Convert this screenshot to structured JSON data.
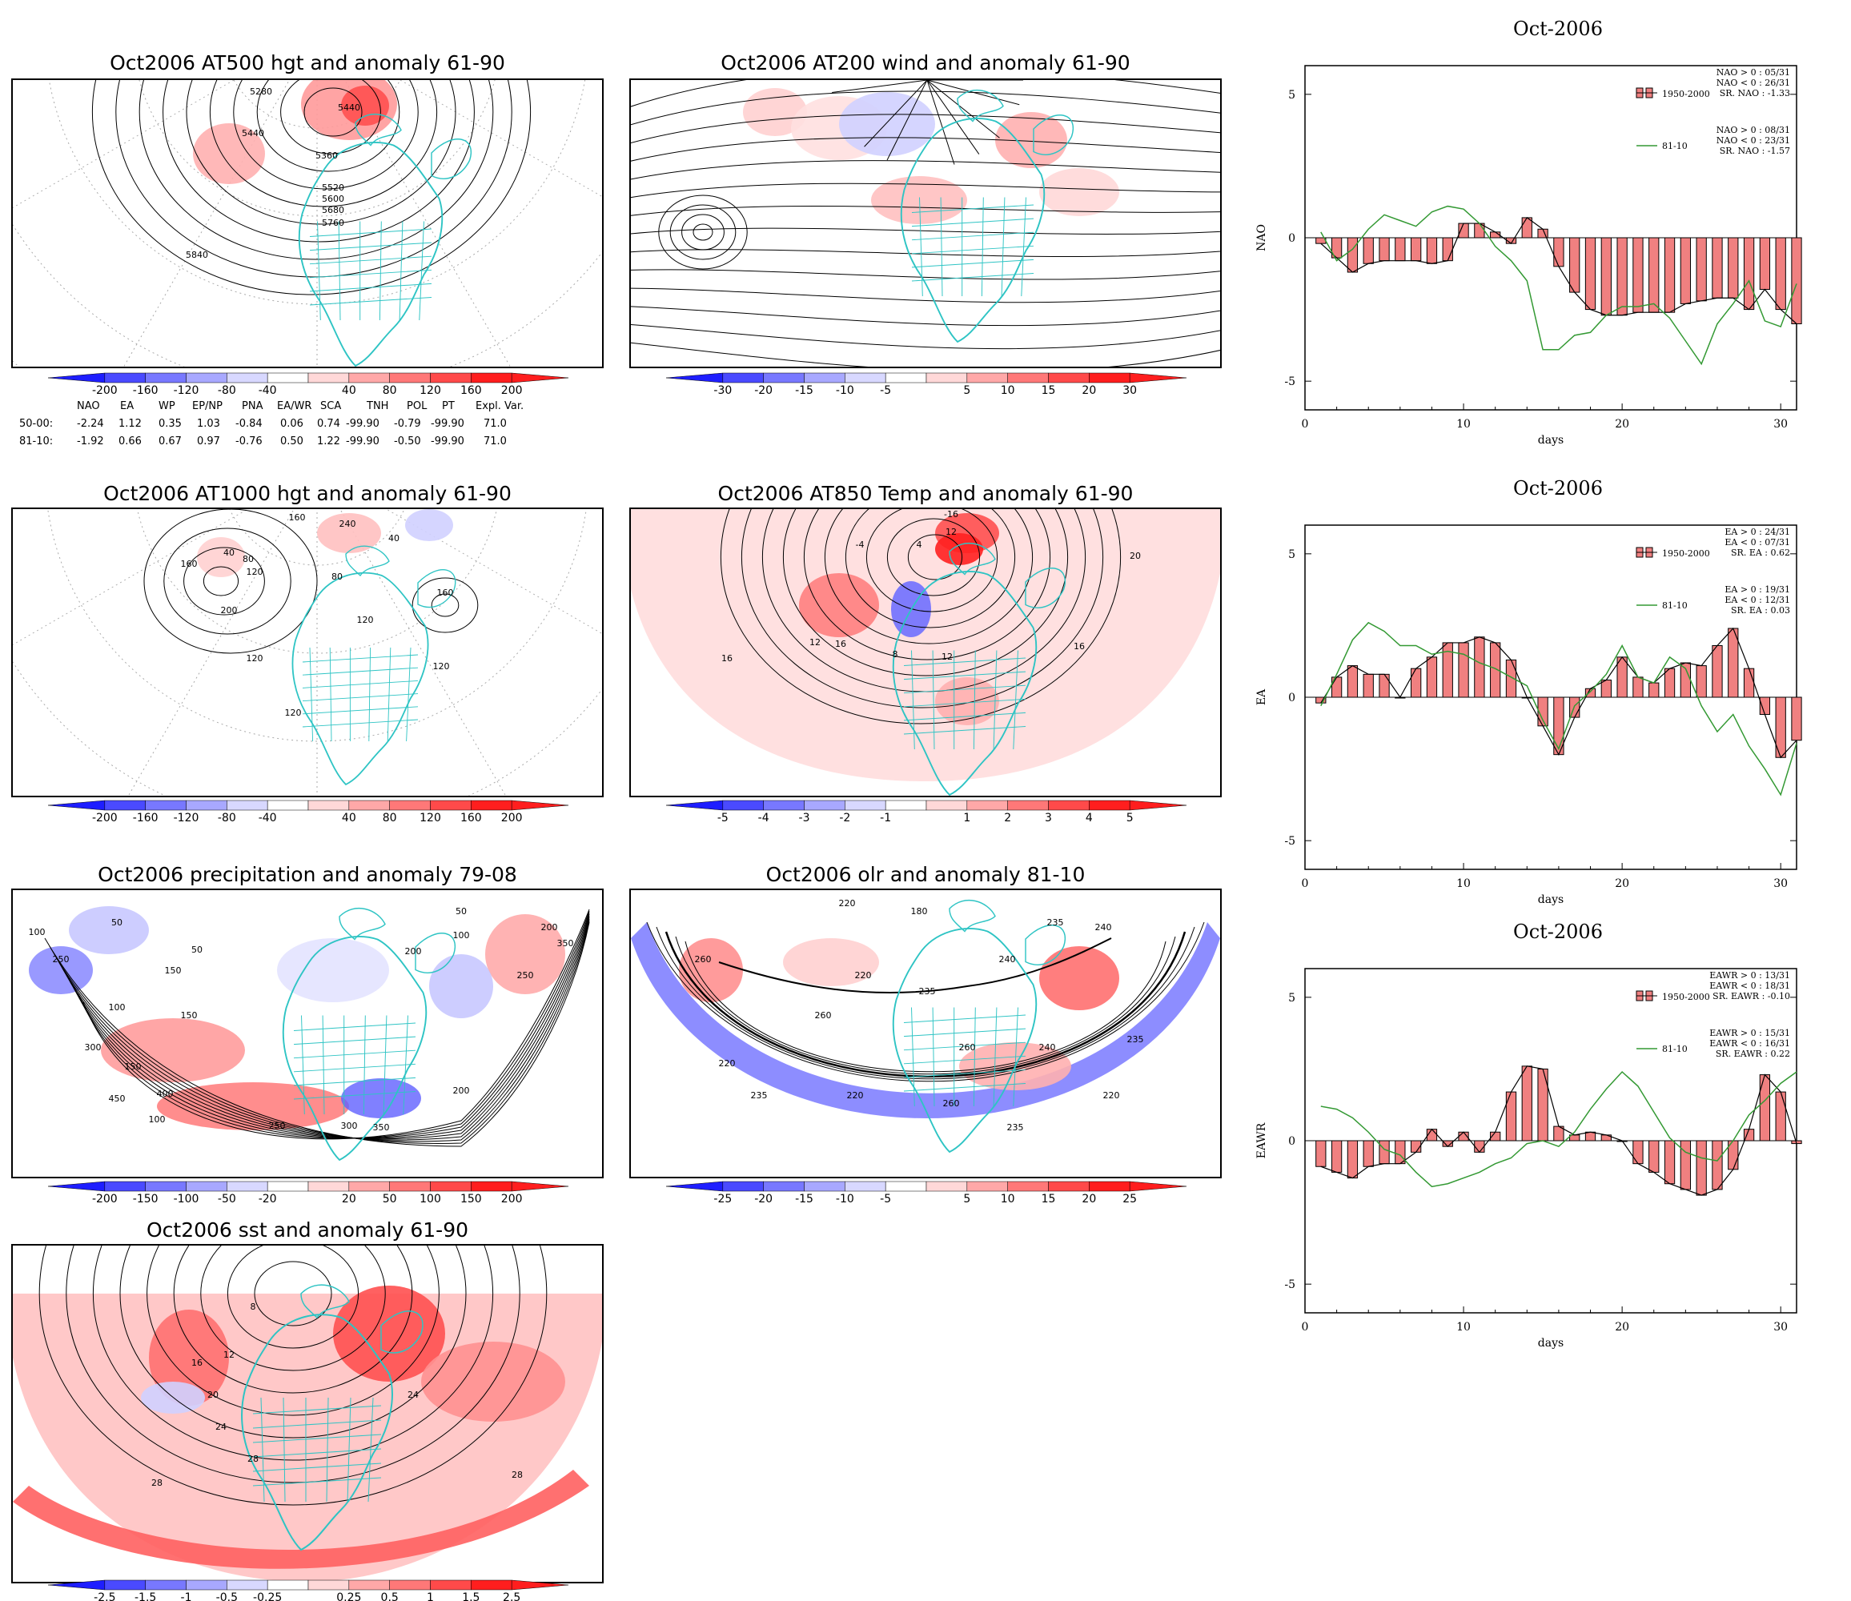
{
  "maps": [
    {
      "id": "z500",
      "title": "Oct2006 AT500 hgt and anomaly 61-90",
      "contour_labels": [
        "5280",
        "5440",
        "5440",
        "5360",
        "5520",
        "5600",
        "5680",
        "5760",
        "5840"
      ],
      "colorbar": {
        "neg": [
          "-200",
          "-160",
          "-120",
          "-80",
          "-40"
        ],
        "pos": [
          "40",
          "80",
          "120",
          "160",
          "200"
        ]
      }
    },
    {
      "id": "w200",
      "title": "Oct2006 AT200 wind and anomaly 61-90",
      "contour_labels": [],
      "colorbar": {
        "neg": [
          "-30",
          "-20",
          "-15",
          "-10",
          "-5"
        ],
        "pos": [
          "5",
          "10",
          "15",
          "20",
          "30"
        ]
      }
    },
    {
      "id": "z1000",
      "title": "Oct2006 AT1000 hgt and anomaly 61-90",
      "contour_labels": [
        "160",
        "240",
        "40",
        "40",
        "80",
        "160",
        "120",
        "80",
        "160",
        "200",
        "120",
        "120",
        "120",
        "120"
      ],
      "colorbar": {
        "neg": [
          "-200",
          "-160",
          "-120",
          "-80",
          "-40"
        ],
        "pos": [
          "40",
          "80",
          "120",
          "160",
          "200"
        ]
      }
    },
    {
      "id": "t850",
      "title": "Oct2006 AT850 Temp and anomaly 61-90",
      "contour_labels": [
        "-16",
        "12",
        "-4",
        "4",
        "20",
        "16",
        "16",
        "12",
        "8",
        "12",
        "16"
      ],
      "colorbar": {
        "neg": [
          "-5",
          "-4",
          "-3",
          "-2",
          "-1"
        ],
        "pos": [
          "1",
          "2",
          "3",
          "4",
          "5"
        ]
      }
    },
    {
      "id": "prec",
      "title": "Oct2006 precipitation and anomaly 79-08",
      "contour_labels": [
        "100",
        "250",
        "50",
        "150",
        "100",
        "50",
        "300",
        "150",
        "200",
        "100",
        "250",
        "400",
        "450",
        "200",
        "300",
        "350",
        "50",
        "100",
        "250",
        "150",
        "350",
        "200"
      ],
      "colorbar": {
        "neg": [
          "-200",
          "-150",
          "-100",
          "-50",
          "-20"
        ],
        "pos": [
          "20",
          "50",
          "100",
          "150",
          "200"
        ]
      }
    },
    {
      "id": "olr",
      "title": "Oct2006 olr and anomaly 81-10",
      "contour_labels": [
        "220",
        "180",
        "235",
        "240",
        "260",
        "220",
        "235",
        "240",
        "260",
        "220",
        "235",
        "260",
        "240",
        "235",
        "220",
        "260",
        "235",
        "220"
      ],
      "colorbar": {
        "neg": [
          "-25",
          "-20",
          "-15",
          "-10",
          "-5"
        ],
        "pos": [
          "5",
          "10",
          "15",
          "20",
          "25"
        ]
      }
    },
    {
      "id": "sst",
      "title": "Oct2006 sst and anomaly 61-90",
      "contour_labels": [
        "8",
        "12",
        "16",
        "20",
        "24",
        "24",
        "28",
        "28",
        "28"
      ],
      "colorbar": {
        "neg": [
          "-2.5",
          "-1.5",
          "-1",
          "-0.5",
          "-0.25"
        ],
        "pos": [
          "0.25",
          "0.5",
          "1",
          "1.5",
          "2.5"
        ]
      }
    }
  ],
  "index_table": {
    "headers": [
      "NAO",
      "EA",
      "WP",
      "EP/NP",
      "PNA",
      "EA/WR",
      "SCA",
      "TNH",
      "POL",
      "PT",
      "Expl. Var."
    ],
    "rows": [
      {
        "label": "50-00:",
        "values": [
          "-2.24",
          "1.12",
          "0.35",
          "1.03",
          "-0.84",
          "0.06",
          "0.74",
          "-99.90",
          "-0.79",
          "-99.90",
          "71.0"
        ]
      },
      {
        "label": "81-10:",
        "values": [
          "-1.92",
          "0.66",
          "0.67",
          "0.97",
          "-0.76",
          "0.50",
          "1.22",
          "-99.90",
          "-0.50",
          "-99.90",
          "71.0"
        ]
      }
    ]
  },
  "colors": {
    "coast": "#2ec4c4",
    "bar_fill": "#f08080",
    "line_green": "#339933",
    "neg_strong": "#2b2bff",
    "pos_strong": "#ff2020"
  },
  "chart_data": [
    {
      "type": "bar",
      "title": "Oct-2006",
      "ylabel": "NAO",
      "xlabel": "days",
      "xlim": [
        0,
        31
      ],
      "ylim": [
        -6,
        6
      ],
      "xticks": [
        "0",
        "10",
        "20",
        "30"
      ],
      "yticks": [
        "5",
        "0",
        "-5"
      ],
      "series": [
        {
          "name": "1950-2000",
          "x": [
            1,
            2,
            3,
            4,
            5,
            6,
            7,
            8,
            9,
            10,
            11,
            12,
            13,
            14,
            15,
            16,
            17,
            18,
            19,
            20,
            21,
            22,
            23,
            24,
            25,
            26,
            27,
            28,
            29,
            30,
            31
          ],
          "values": [
            -0.2,
            -0.7,
            -1.2,
            -0.9,
            -0.8,
            -0.8,
            -0.8,
            -0.9,
            -0.8,
            0.5,
            0.5,
            0.2,
            -0.2,
            0.7,
            0.3,
            -1.0,
            -1.9,
            -2.5,
            -2.7,
            -2.7,
            -2.6,
            -2.6,
            -2.6,
            -2.3,
            -2.2,
            -2.1,
            -2.1,
            -2.5,
            -1.8,
            -2.5,
            -3.0
          ]
        },
        {
          "name": "81-10",
          "x": [
            1,
            2,
            3,
            4,
            5,
            6,
            7,
            8,
            9,
            10,
            11,
            12,
            13,
            14,
            15,
            16,
            17,
            18,
            19,
            20,
            21,
            22,
            23,
            24,
            25,
            26,
            27,
            28,
            29,
            30,
            31
          ],
          "values": [
            0.2,
            -0.8,
            -0.4,
            0.3,
            0.8,
            0.6,
            0.4,
            0.9,
            1.1,
            1.0,
            0.5,
            -0.3,
            -0.8,
            -1.5,
            -3.9,
            -3.9,
            -3.4,
            -3.3,
            -2.7,
            -2.4,
            -2.4,
            -2.3,
            -2.8,
            -3.6,
            -4.4,
            -3.0,
            -2.3,
            -1.5,
            -2.9,
            -3.1,
            -1.6
          ]
        }
      ],
      "legend": {
        "bar_label": "1950-2000",
        "line_label": "81-10",
        "bar_stats": [
          "NAO > 0 : 05/31",
          "NAO < 0 : 26/31",
          "SR. NAO : -1.33"
        ],
        "line_stats": [
          "NAO > 0 : 08/31",
          "NAO < 0 : 23/31",
          "SR. NAO : -1.57"
        ]
      }
    },
    {
      "type": "bar",
      "title": "Oct-2006",
      "ylabel": "EA",
      "xlabel": "days",
      "xlim": [
        0,
        31
      ],
      "ylim": [
        -6,
        6
      ],
      "xticks": [
        "0",
        "10",
        "20",
        "30"
      ],
      "yticks": [
        "5",
        "0",
        "-5"
      ],
      "series": [
        {
          "name": "1950-2000",
          "x": [
            1,
            2,
            3,
            4,
            5,
            6,
            7,
            8,
            9,
            10,
            11,
            12,
            13,
            14,
            15,
            16,
            17,
            18,
            19,
            20,
            21,
            22,
            23,
            24,
            25,
            26,
            27,
            28,
            29,
            30,
            31
          ],
          "values": [
            -0.2,
            0.7,
            1.1,
            0.8,
            0.8,
            0.0,
            1.0,
            1.4,
            1.9,
            1.9,
            2.1,
            1.9,
            1.3,
            0.0,
            -1.0,
            -2.0,
            -0.7,
            0.3,
            0.6,
            1.4,
            0.7,
            0.5,
            1.0,
            1.2,
            1.1,
            1.8,
            2.4,
            1.0,
            -0.6,
            -2.1,
            -1.5
          ]
        },
        {
          "name": "81-10",
          "x": [
            1,
            2,
            3,
            4,
            5,
            6,
            7,
            8,
            9,
            10,
            11,
            12,
            13,
            14,
            15,
            16,
            17,
            18,
            19,
            20,
            21,
            22,
            23,
            24,
            25,
            26,
            27,
            28,
            29,
            30,
            31
          ],
          "values": [
            -0.3,
            0.8,
            2.0,
            2.6,
            2.3,
            1.8,
            1.8,
            1.5,
            1.6,
            1.5,
            1.2,
            1.0,
            0.7,
            0.4,
            -0.8,
            -1.8,
            -0.3,
            0.2,
            0.8,
            1.8,
            0.7,
            0.5,
            1.4,
            1.0,
            -0.3,
            -1.2,
            -0.6,
            -1.7,
            -2.5,
            -3.4,
            -1.6
          ]
        }
      ],
      "legend": {
        "bar_label": "1950-2000",
        "line_label": "81-10",
        "bar_stats": [
          "EA > 0 : 24/31",
          "EA < 0 : 07/31",
          "SR. EA : 0.62"
        ],
        "line_stats": [
          "EA > 0 : 19/31",
          "EA < 0 : 12/31",
          "SR. EA : 0.03"
        ]
      }
    },
    {
      "type": "bar",
      "title": "Oct-2006",
      "ylabel": "EAWR",
      "xlabel": "days",
      "xlim": [
        0,
        31
      ],
      "ylim": [
        -6,
        6
      ],
      "xticks": [
        "0",
        "10",
        "20",
        "30"
      ],
      "yticks": [
        "5",
        "0",
        "-5"
      ],
      "series": [
        {
          "name": "1950-2000",
          "x": [
            1,
            2,
            3,
            4,
            5,
            6,
            7,
            8,
            9,
            10,
            11,
            12,
            13,
            14,
            15,
            16,
            17,
            18,
            19,
            20,
            21,
            22,
            23,
            24,
            25,
            26,
            27,
            28,
            29,
            30,
            31
          ],
          "values": [
            -0.9,
            -1.1,
            -1.3,
            -0.9,
            -0.8,
            -0.8,
            -0.4,
            0.4,
            -0.2,
            0.3,
            -0.4,
            0.3,
            1.7,
            2.6,
            2.5,
            0.5,
            0.2,
            0.3,
            0.2,
            0.0,
            -0.8,
            -1.1,
            -1.5,
            -1.7,
            -1.9,
            -1.7,
            -1.0,
            0.4,
            2.3,
            1.7,
            -0.1
          ]
        },
        {
          "name": "81-10",
          "x": [
            1,
            2,
            3,
            4,
            5,
            6,
            7,
            8,
            9,
            10,
            11,
            12,
            13,
            14,
            15,
            16,
            17,
            18,
            19,
            20,
            21,
            22,
            23,
            24,
            25,
            26,
            27,
            28,
            29,
            30,
            31
          ],
          "values": [
            1.2,
            1.1,
            0.8,
            0.3,
            -0.3,
            -0.5,
            -1.1,
            -1.6,
            -1.5,
            -1.3,
            -1.1,
            -0.8,
            -0.6,
            -0.1,
            0.0,
            -0.2,
            0.3,
            1.1,
            1.8,
            2.4,
            1.9,
            1.0,
            0.1,
            -0.4,
            -0.6,
            -0.7,
            0.0,
            0.9,
            1.4,
            2.0,
            2.4
          ]
        }
      ],
      "legend": {
        "bar_label": "1950-2000",
        "line_label": "81-10",
        "bar_stats": [
          "EAWR > 0 : 13/31",
          "EAWR < 0 : 18/31",
          "SR. EAWR : -0.10"
        ],
        "line_stats": [
          "EAWR > 0 : 15/31",
          "EAWR < 0 : 16/31",
          "SR. EAWR : 0.22"
        ]
      }
    }
  ]
}
